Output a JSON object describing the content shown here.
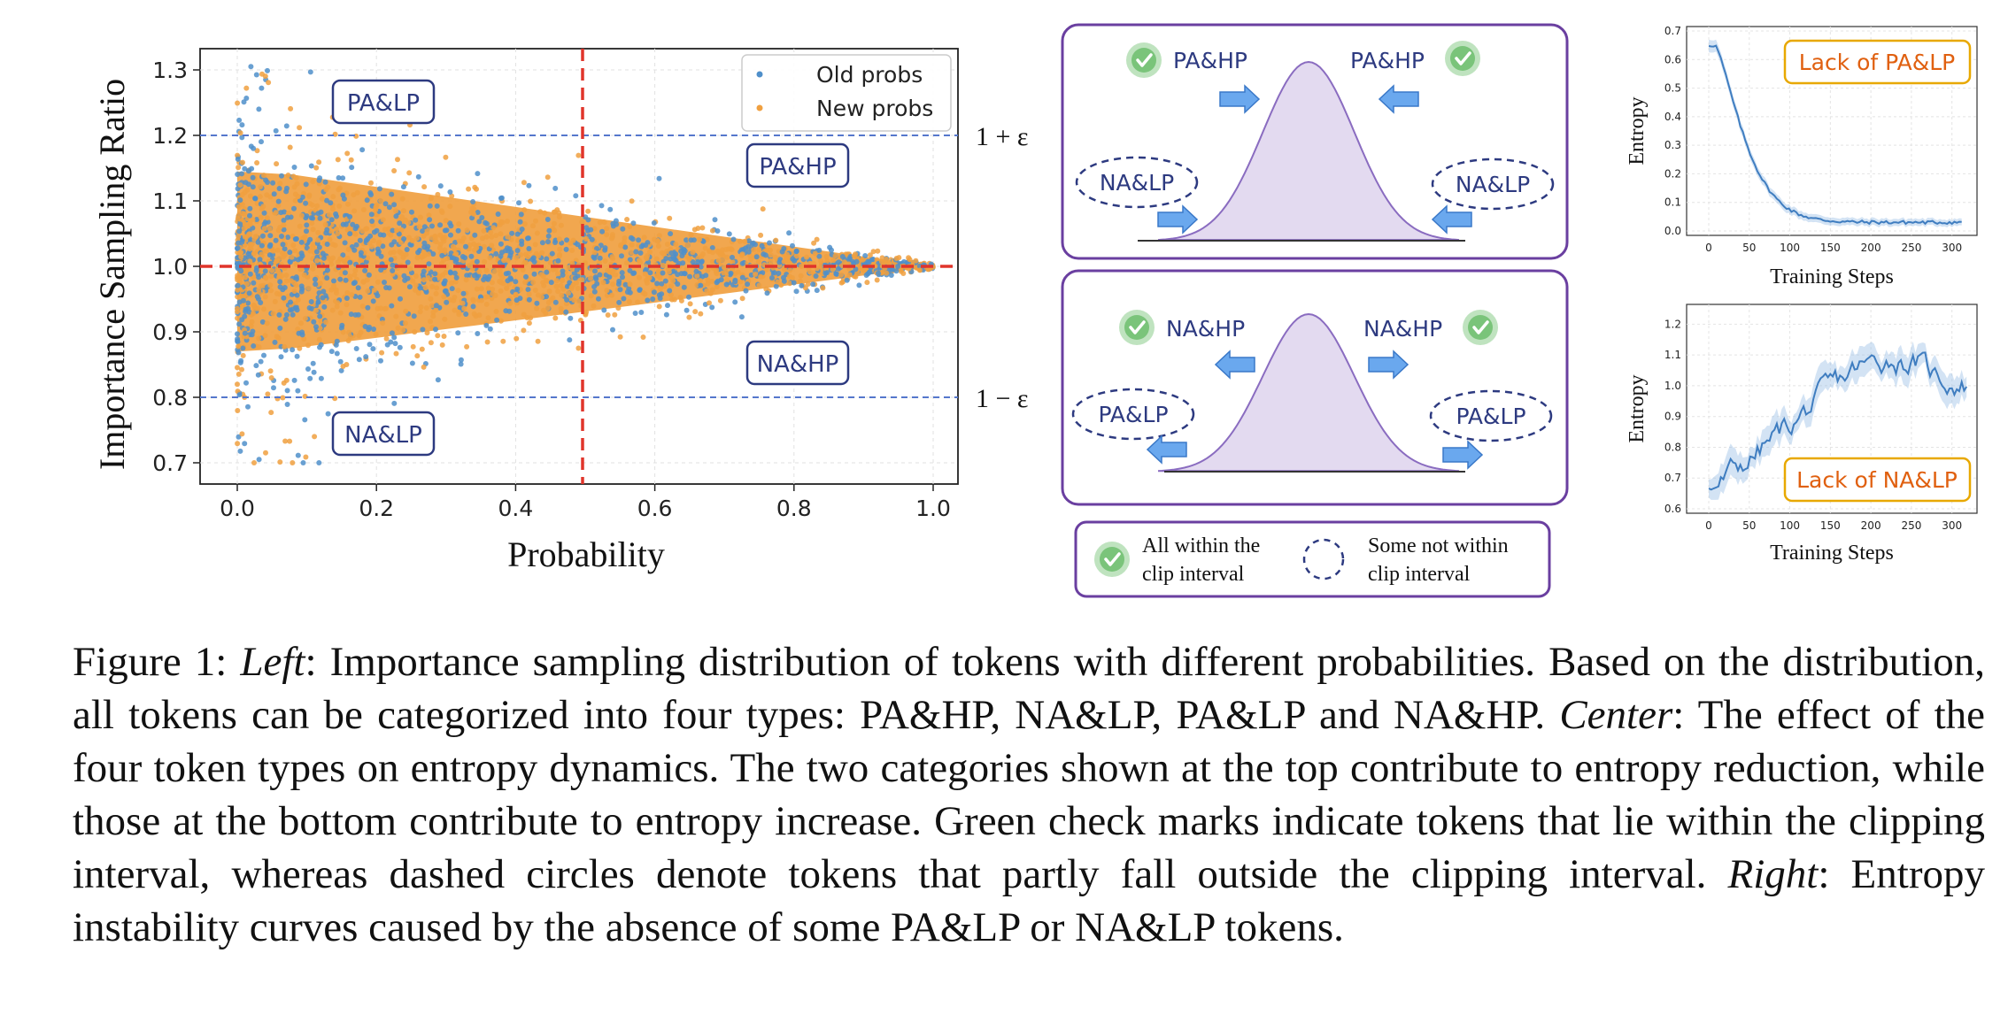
{
  "left_panel": {
    "ylabel": "Importance  Sampling Ratio",
    "xlabel": "Probability",
    "legend": [
      "Old probs",
      "New probs"
    ],
    "eps_upper": "1 + ε",
    "eps_lower": "1 − ε",
    "region_labels": [
      "PA&LP",
      "PA&HP",
      "NA&HP",
      "NA&LP"
    ],
    "xticks": [
      "0.0",
      "0.2",
      "0.4",
      "0.6",
      "0.8",
      "1.0"
    ],
    "yticks": [
      "0.7",
      "0.8",
      "0.9",
      "1.0",
      "1.1",
      "1.2",
      "1.3"
    ]
  },
  "center_panel": {
    "top_labels": [
      "PA&HP",
      "PA&HP",
      "NA&LP",
      "NA&LP"
    ],
    "bottom_labels": [
      "NA&HP",
      "NA&HP",
      "PA&LP",
      "PA&LP"
    ],
    "legend_check_line1": "All within the",
    "legend_check_line2": "clip interval",
    "legend_dash_line1": "Some not within",
    "legend_dash_line2": "clip interval"
  },
  "right_top": {
    "ylabel": "Entropy",
    "xlabel": "Training Steps",
    "badge": "Lack of PA&LP",
    "xticks": [
      "0",
      "50",
      "100",
      "150",
      "200",
      "250",
      "300"
    ],
    "yticks": [
      "0.0",
      "0.1",
      "0.2",
      "0.3",
      "0.4",
      "0.5",
      "0.6",
      "0.7"
    ]
  },
  "right_bottom": {
    "ylabel": "Entropy",
    "xlabel": "Training Steps",
    "badge": "Lack of NA&LP",
    "xticks": [
      "0",
      "50",
      "100",
      "150",
      "200",
      "250",
      "300"
    ],
    "yticks": [
      "0.6",
      "0.7",
      "0.8",
      "0.9",
      "1.0",
      "1.1",
      "1.2"
    ]
  },
  "caption": {
    "fig_label": "Figure 1: ",
    "left_word": "Left",
    "left_text": ": Importance sampling distribution of tokens with different probabilities. Based on the distribution, all tokens can be categorized into four types: PA&HP, NA&LP, PA&LP and NA&HP. ",
    "center_word": "Center",
    "center_text": ": The effect of the four token types on entropy dynamics. The two categories shown at the top contribute to entropy reduction, while those at the bottom contribute to entropy increase. Green check marks indicate tokens that lie within the clipping interval, whereas dashed circles denote tokens that partly fall outside the clipping interval. ",
    "right_word": "Right",
    "right_text": ": Entropy instability curves caused by the absence of some PA&LP or NA&LP tokens."
  },
  "colors": {
    "old": "#4f8fca",
    "new": "#f0a040",
    "red": "#e0352b",
    "blue_dash": "#5577cc",
    "navy": "#2d3a80",
    "purple": "#6a3fa0",
    "orange_badge": "#e8a800"
  }
}
